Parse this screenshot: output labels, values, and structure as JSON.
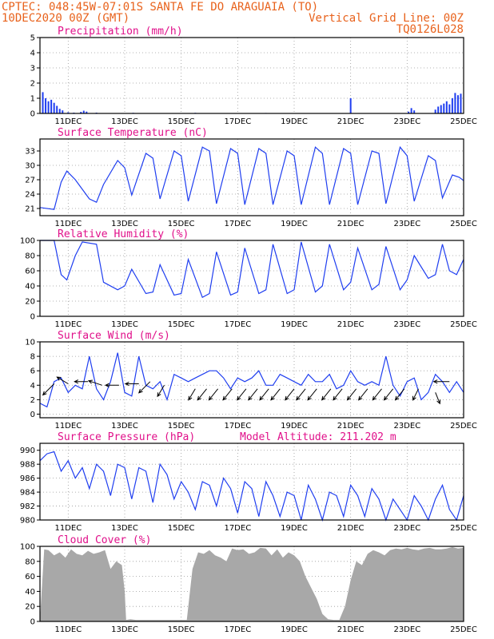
{
  "header": {
    "line1": "CPTEC:   048:45W-07:01S  SANTA FE DO ARAGUAIA (TO)",
    "date": "10DEC2020 00Z (GMT)",
    "grid_note": "Vertical Grid Line: 00Z",
    "model": "TQ0126L028"
  },
  "colors": {
    "header": "#e8621c",
    "titles": "#e0108a",
    "series_line": "#1f3ef0",
    "precip_bars": "#1f3ef0",
    "cloud_fill": "#a8a8a8"
  },
  "chart_data": [
    {
      "type": "bar",
      "title": "Precipitation (mm/h)",
      "x_tick_labels": [
        "11DEC",
        "13DEC",
        "15DEC",
        "17DEC",
        "19DEC",
        "21DEC",
        "23DEC",
        "25DEC"
      ],
      "ylim": [
        0,
        5
      ],
      "y_ticks": [
        0,
        1,
        2,
        3,
        4,
        5
      ],
      "grid": true,
      "points": [
        [
          0.1,
          1.4
        ],
        [
          0.2,
          1.0
        ],
        [
          0.3,
          0.8
        ],
        [
          0.4,
          0.9
        ],
        [
          0.5,
          0.7
        ],
        [
          0.6,
          0.5
        ],
        [
          0.7,
          0.3
        ],
        [
          0.8,
          0.2
        ],
        [
          1.0,
          0.08
        ],
        [
          1.2,
          0.05
        ],
        [
          1.45,
          0.1
        ],
        [
          1.55,
          0.18
        ],
        [
          1.65,
          0.12
        ],
        [
          2.0,
          0.05
        ],
        [
          3.3,
          0.04
        ],
        [
          5.5,
          0.04
        ],
        [
          8.0,
          0.03
        ],
        [
          11.0,
          1.0
        ],
        [
          13.05,
          0.12
        ],
        [
          13.15,
          0.35
        ],
        [
          13.25,
          0.2
        ],
        [
          14.0,
          0.25
        ],
        [
          14.1,
          0.45
        ],
        [
          14.2,
          0.55
        ],
        [
          14.3,
          0.65
        ],
        [
          14.4,
          0.8
        ],
        [
          14.5,
          0.6
        ],
        [
          14.6,
          1.0
        ],
        [
          14.7,
          1.35
        ],
        [
          14.8,
          1.2
        ],
        [
          14.9,
          1.3
        ]
      ]
    },
    {
      "type": "line",
      "title": "Surface Temperature (nC)",
      "x_tick_labels": [
        "11DEC",
        "13DEC",
        "15DEC",
        "17DEC",
        "19DEC",
        "21DEC",
        "23DEC",
        "25DEC"
      ],
      "ylim": [
        19.5,
        35.5
      ],
      "y_ticks": [
        21,
        24,
        27,
        30,
        33
      ],
      "grid": true,
      "x": [
        0,
        0.5,
        0.75,
        0.95,
        1.25,
        1.75,
        2.0,
        2.25,
        2.75,
        3.0,
        3.25,
        3.75,
        4.0,
        4.25,
        4.75,
        5.0,
        5.25,
        5.75,
        6.0,
        6.25,
        6.75,
        7.0,
        7.25,
        7.75,
        8.0,
        8.25,
        8.75,
        9.0,
        9.25,
        9.75,
        10.0,
        10.25,
        10.75,
        11.0,
        11.25,
        11.75,
        12.0,
        12.25,
        12.75,
        13.0,
        13.25,
        13.75,
        14.0,
        14.25,
        14.6,
        14.85,
        15.0
      ],
      "y": [
        21.2,
        20.8,
        26.5,
        28.8,
        27.0,
        23.0,
        22.3,
        26.0,
        31.0,
        29.5,
        23.8,
        32.5,
        31.5,
        23.0,
        33.0,
        32.0,
        22.5,
        33.8,
        33.0,
        22.0,
        33.5,
        32.5,
        21.8,
        33.5,
        32.5,
        21.8,
        33.0,
        32.0,
        21.8,
        33.8,
        32.5,
        21.8,
        33.5,
        32.5,
        21.8,
        33.0,
        32.5,
        22.0,
        33.8,
        32.0,
        22.5,
        32.0,
        31.0,
        23.2,
        28.0,
        27.5,
        26.8
      ]
    },
    {
      "type": "line",
      "title": "Relative Humidity (%)",
      "x_tick_labels": [
        "11DEC",
        "13DEC",
        "15DEC",
        "17DEC",
        "19DEC",
        "21DEC",
        "23DEC",
        "25DEC"
      ],
      "ylim": [
        0,
        100
      ],
      "y_ticks": [
        0,
        20,
        40,
        60,
        80,
        100
      ],
      "grid": true,
      "x": [
        0,
        0.5,
        0.75,
        0.95,
        1.25,
        1.5,
        2.0,
        2.25,
        2.75,
        3.0,
        3.25,
        3.75,
        4.0,
        4.25,
        4.75,
        5.0,
        5.25,
        5.75,
        6.0,
        6.25,
        6.75,
        7.0,
        7.25,
        7.75,
        8.0,
        8.25,
        8.75,
        9.0,
        9.25,
        9.75,
        10.0,
        10.25,
        10.75,
        11.0,
        11.25,
        11.75,
        12.0,
        12.25,
        12.75,
        13.0,
        13.25,
        13.75,
        14.0,
        14.25,
        14.5,
        14.75,
        15.0
      ],
      "y": [
        100,
        100,
        55,
        48,
        80,
        98,
        95,
        45,
        35,
        40,
        62,
        30,
        32,
        68,
        28,
        30,
        75,
        25,
        30,
        85,
        28,
        32,
        90,
        30,
        35,
        95,
        30,
        35,
        98,
        32,
        40,
        95,
        35,
        45,
        90,
        35,
        42,
        92,
        35,
        48,
        80,
        50,
        55,
        95,
        60,
        55,
        75
      ]
    },
    {
      "type": "line",
      "title": "Surface Wind (m/s)",
      "x_tick_labels": [
        "11DEC",
        "13DEC",
        "15DEC",
        "17DEC",
        "19DEC",
        "21DEC",
        "23DEC",
        "25DEC"
      ],
      "ylim": [
        -0.5,
        10
      ],
      "y_ticks": [
        0,
        2,
        4,
        6,
        8,
        10
      ],
      "grid": true,
      "x": [
        0,
        0.25,
        0.5,
        0.75,
        1.0,
        1.25,
        1.5,
        1.75,
        2.0,
        2.25,
        2.5,
        2.75,
        3.0,
        3.25,
        3.5,
        3.75,
        4.0,
        4.25,
        4.5,
        4.75,
        5.0,
        5.25,
        5.5,
        5.75,
        6.0,
        6.25,
        6.5,
        6.75,
        7.0,
        7.25,
        7.5,
        7.75,
        8.0,
        8.25,
        8.5,
        8.75,
        9.0,
        9.25,
        9.5,
        9.75,
        10.0,
        10.25,
        10.5,
        10.75,
        11.0,
        11.25,
        11.5,
        11.75,
        12.0,
        12.25,
        12.5,
        12.75,
        13.0,
        13.25,
        13.5,
        13.75,
        14.0,
        14.25,
        14.5,
        14.75,
        15.0
      ],
      "y": [
        1.5,
        1.0,
        4.5,
        5.0,
        3.0,
        4.0,
        3.5,
        8.0,
        3.5,
        2.0,
        4.5,
        8.5,
        3.0,
        2.5,
        8.0,
        4.0,
        3.5,
        4.5,
        2.0,
        5.5,
        5.0,
        4.5,
        5.0,
        5.5,
        6.0,
        6.0,
        5.0,
        3.5,
        5.0,
        4.5,
        5.0,
        6.0,
        4.0,
        4.0,
        5.5,
        5.0,
        4.5,
        4.0,
        5.5,
        4.5,
        4.5,
        5.5,
        3.5,
        4.0,
        6.0,
        4.5,
        4.0,
        4.5,
        4.0,
        8.0,
        4.0,
        2.5,
        4.5,
        5.0,
        2.0,
        3.0,
        5.5,
        4.5,
        3.0,
        4.5,
        3.0
      ],
      "vectors": {
        "x": [
          0.5,
          1.0,
          1.7,
          2.2,
          2.8,
          3.5,
          3.9,
          4.4,
          5.5,
          5.9,
          6.3,
          6.8,
          7.3,
          7.7,
          8.1,
          8.5,
          9.0,
          9.4,
          9.8,
          10.3,
          10.7,
          11.2,
          11.6,
          12.1,
          12.5,
          12.9,
          13.4,
          14.0,
          14.5
        ],
        "y": [
          4.2,
          4.2,
          4.5,
          4.0,
          4.0,
          4.2,
          4.5,
          4.0,
          3.5,
          3.5,
          3.5,
          3.5,
          3.5,
          3.5,
          3.5,
          3.5,
          3.5,
          3.5,
          3.5,
          3.5,
          3.5,
          3.5,
          3.5,
          3.5,
          3.5,
          3.5,
          3.5,
          3.0,
          4.5
        ],
        "u": [
          -1.0,
          -1.0,
          -1.2,
          -1.2,
          -1.2,
          -1.2,
          -1.0,
          -0.6,
          -0.6,
          -0.8,
          -0.8,
          -0.8,
          -0.8,
          -0.8,
          -0.8,
          -0.8,
          -0.8,
          -0.8,
          -0.8,
          -0.8,
          -0.8,
          -0.8,
          -0.8,
          -0.8,
          -0.8,
          -0.8,
          -0.5,
          0.4,
          -1.4
        ],
        "v": [
          -1.0,
          0.6,
          0.0,
          0.4,
          0.0,
          0.0,
          -1.0,
          -1.0,
          -1.0,
          -1.0,
          -1.0,
          -1.0,
          -1.0,
          -1.0,
          -1.0,
          -1.0,
          -1.0,
          -1.0,
          -1.0,
          -1.0,
          -1.0,
          -1.0,
          -1.0,
          -1.0,
          -1.0,
          -1.0,
          -1.0,
          -1.0,
          0.0
        ]
      }
    },
    {
      "type": "line",
      "title": "Surface Pressure (hPa)",
      "annotation": "Model Altitude: 211.202 m",
      "x_tick_labels": [
        "11DEC",
        "13DEC",
        "15DEC",
        "17DEC",
        "19DEC",
        "21DEC",
        "23DEC",
        "25DEC"
      ],
      "ylim": [
        980,
        991
      ],
      "y_ticks": [
        980,
        982,
        984,
        986,
        988,
        990
      ],
      "grid": true,
      "x": [
        0,
        0.25,
        0.5,
        0.75,
        1.0,
        1.25,
        1.5,
        1.75,
        2.0,
        2.25,
        2.5,
        2.75,
        3.0,
        3.25,
        3.5,
        3.75,
        4.0,
        4.25,
        4.5,
        4.75,
        5.0,
        5.25,
        5.5,
        5.75,
        6.0,
        6.25,
        6.5,
        6.75,
        7.0,
        7.25,
        7.5,
        7.75,
        8.0,
        8.25,
        8.5,
        8.75,
        9.0,
        9.25,
        9.5,
        9.75,
        10.0,
        10.25,
        10.5,
        10.75,
        11.0,
        11.25,
        11.5,
        11.75,
        12.0,
        12.25,
        12.5,
        12.75,
        13.0,
        13.25,
        13.5,
        13.75,
        14.0,
        14.25,
        14.5,
        14.75,
        15.0
      ],
      "y": [
        988.5,
        989.5,
        989.8,
        987.0,
        988.5,
        986.0,
        987.5,
        984.5,
        988.0,
        987.0,
        983.5,
        988.0,
        987.5,
        983.0,
        987.5,
        987.0,
        982.5,
        988.0,
        986.5,
        983.0,
        985.5,
        984.0,
        981.5,
        985.5,
        985.0,
        982.0,
        986.0,
        984.5,
        981.0,
        985.5,
        984.5,
        980.5,
        985.5,
        983.5,
        980.5,
        984.0,
        983.5,
        980.0,
        985.0,
        983.0,
        980.0,
        984.0,
        983.5,
        980.5,
        985.0,
        983.5,
        980.5,
        984.5,
        983.0,
        980.0,
        983.0,
        981.5,
        980.0,
        983.5,
        982.0,
        980.0,
        983.0,
        985.0,
        981.5,
        980.0,
        983.5
      ]
    },
    {
      "type": "area",
      "title": "Cloud Cover (%)",
      "x_tick_labels": [
        "11DEC",
        "13DEC",
        "15DEC",
        "17DEC",
        "19DEC",
        "21DEC",
        "23DEC",
        "25DEC"
      ],
      "ylim": [
        0,
        100
      ],
      "y_ticks": [
        0,
        20,
        40,
        60,
        80,
        100
      ],
      "grid": true,
      "x": [
        0,
        0.15,
        0.3,
        0.5,
        0.7,
        0.9,
        1.1,
        1.3,
        1.5,
        1.7,
        1.9,
        2.1,
        2.3,
        2.5,
        2.7,
        2.9,
        3.0,
        3.05,
        3.2,
        3.4,
        3.6,
        3.8,
        4.0,
        4.2,
        4.4,
        4.6,
        4.8,
        5.0,
        5.2,
        5.4,
        5.6,
        5.8,
        6.0,
        6.2,
        6.4,
        6.6,
        6.8,
        7.0,
        7.2,
        7.4,
        7.6,
        7.8,
        8.0,
        8.2,
        8.4,
        8.6,
        8.8,
        9.0,
        9.2,
        9.4,
        9.6,
        9.8,
        10.0,
        10.2,
        10.4,
        10.6,
        10.8,
        11.0,
        11.2,
        11.4,
        11.6,
        11.8,
        12.0,
        12.2,
        12.4,
        12.6,
        12.8,
        13.0,
        13.2,
        13.4,
        13.6,
        13.8,
        14.0,
        14.2,
        14.4,
        14.6,
        14.8,
        15.0
      ],
      "y": [
        3,
        96,
        95,
        88,
        92,
        85,
        96,
        90,
        88,
        94,
        90,
        92,
        95,
        70,
        80,
        75,
        40,
        2,
        3,
        2,
        2,
        2,
        2,
        2,
        2,
        2,
        2,
        2,
        2,
        70,
        92,
        90,
        95,
        88,
        85,
        80,
        97,
        95,
        96,
        90,
        92,
        98,
        97,
        88,
        96,
        85,
        92,
        88,
        80,
        60,
        45,
        30,
        10,
        3,
        2,
        2,
        20,
        55,
        80,
        75,
        90,
        95,
        92,
        88,
        95,
        97,
        96,
        98,
        96,
        95,
        97,
        98,
        96,
        96,
        97,
        99,
        97,
        98
      ]
    }
  ]
}
